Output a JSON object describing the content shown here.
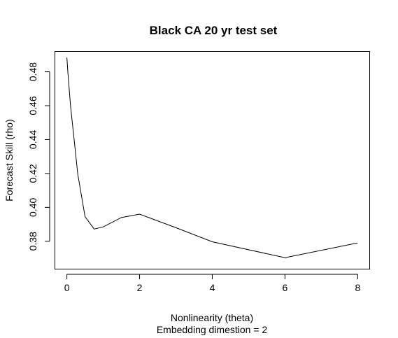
{
  "chart_data": {
    "type": "line",
    "title": "Black CA 20 yr test set",
    "xlabel": "Nonlinearity (theta)",
    "subtitle": "Embedding dimestion =  2",
    "ylabel": "Forecast Skill (rho)",
    "xlim": [
      -0.32,
      8.32
    ],
    "ylim": [
      0.3638,
      0.4918
    ],
    "x_ticks": [
      0,
      2,
      4,
      6,
      8
    ],
    "y_ticks": [
      0.38,
      0.4,
      0.42,
      0.44,
      0.46,
      0.48
    ],
    "x_tick_labels": [
      "0",
      "2",
      "4",
      "6",
      "8"
    ],
    "y_tick_labels": [
      "0.38",
      "0.40",
      "0.42",
      "0.44",
      "0.46",
      "0.48"
    ],
    "grid": false,
    "legend": "none",
    "series": [
      {
        "color": "#000000",
        "x": [
          0,
          0.0001,
          0.0003,
          0.001,
          0.003,
          0.01,
          0.03,
          0.1,
          0.3,
          0.5,
          0.75,
          1,
          1.5,
          2,
          3,
          4,
          6,
          8
        ],
        "y": [
          0.4884,
          0.4884,
          0.4883,
          0.488,
          0.4874,
          0.4852,
          0.4788,
          0.46,
          0.4195,
          0.3945,
          0.3872,
          0.3885,
          0.394,
          0.396,
          0.388,
          0.3797,
          0.3703,
          0.379
        ]
      }
    ]
  }
}
